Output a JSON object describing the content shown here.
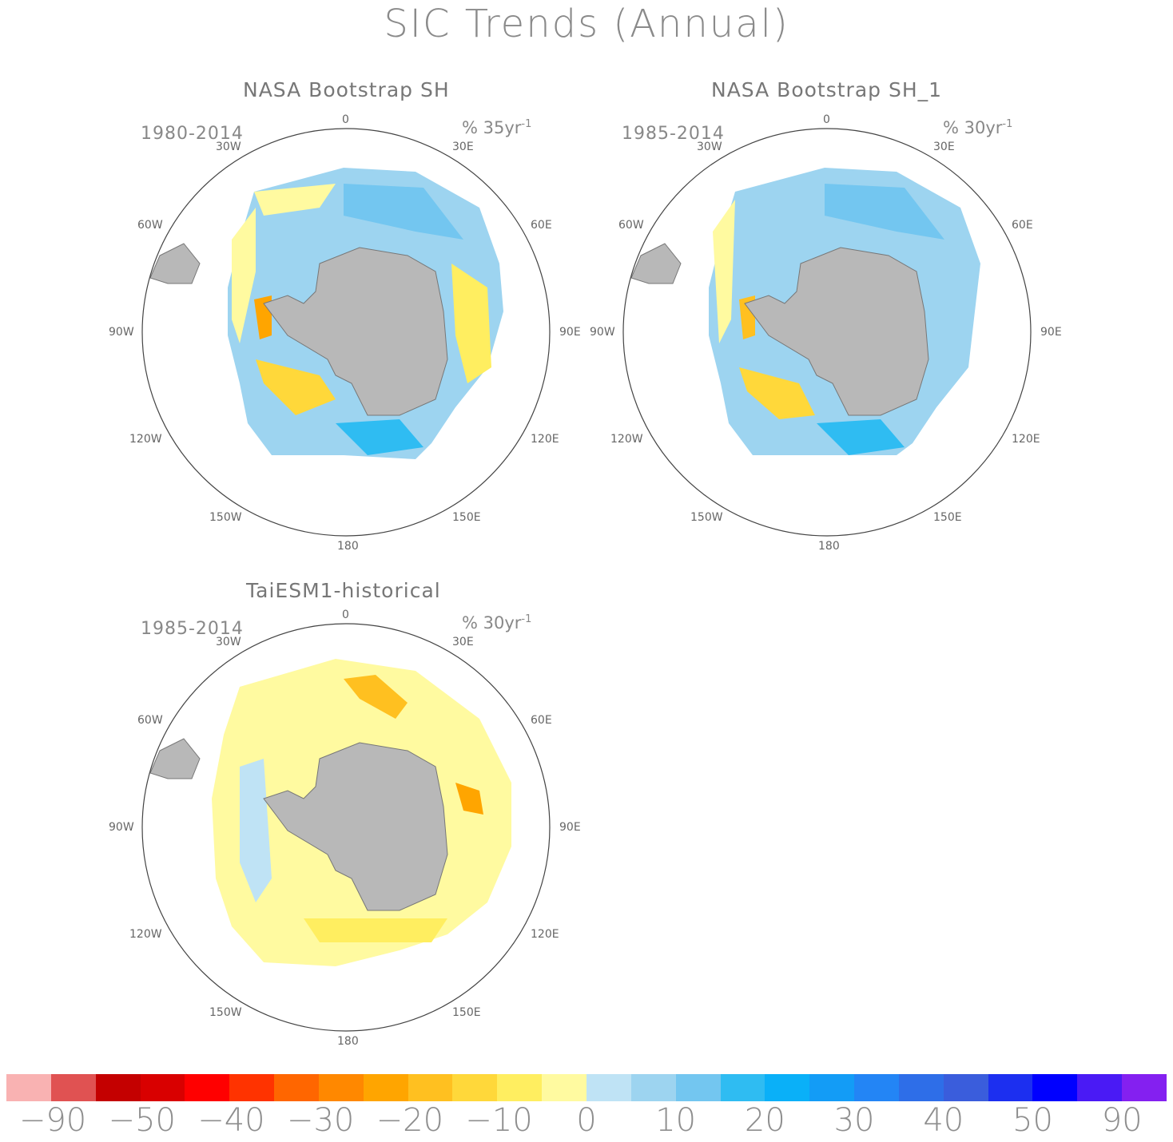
{
  "title": "SIC Trends (Annual)",
  "panels": [
    {
      "title": "NASA Bootstrap SH",
      "period": "1980-2014",
      "units": "% 35yr",
      "units_exp": "-1",
      "lon_labels": [
        "0",
        "30E",
        "60E",
        "90E",
        "120E",
        "150E",
        "180",
        "150W",
        "120W",
        "90W",
        "60W",
        "30W"
      ]
    },
    {
      "title": "NASA Bootstrap SH_1",
      "period": "1985-2014",
      "units": "% 30yr",
      "units_exp": "-1",
      "lon_labels": [
        "0",
        "30E",
        "60E",
        "90E",
        "120E",
        "150E",
        "180",
        "150W",
        "120W",
        "90W",
        "60W",
        "30W"
      ]
    },
    {
      "title": "TaiESM1-historical",
      "period": "1985-2014",
      "units": "% 30yr",
      "units_exp": "-1",
      "lon_labels": [
        "0",
        "30E",
        "60E",
        "90E",
        "120E",
        "150E",
        "180",
        "150W",
        "120W",
        "90W",
        "60W",
        "30W"
      ]
    }
  ],
  "colorbar": {
    "colors": [
      "#f9b2b2",
      "#e05252",
      "#c40000",
      "#d90000",
      "#ff0000",
      "#ff3300",
      "#ff6600",
      "#ff8800",
      "#ffa500",
      "#ffc020",
      "#ffd83a",
      "#ffee60",
      "#fffaa0",
      "#bfe3f5",
      "#9dd4f0",
      "#73c6f0",
      "#2fbcf2",
      "#0ab0f8",
      "#139cf6",
      "#2385f5",
      "#2e6ee8",
      "#3a5ddc",
      "#1c2ff0",
      "#0000ff",
      "#4a1af5",
      "#8420f0"
    ],
    "tick_labels": [
      "-90",
      "-50",
      "-40",
      "-30",
      "-20",
      "-10",
      "0",
      "10",
      "20",
      "30",
      "40",
      "50",
      "90"
    ]
  }
}
